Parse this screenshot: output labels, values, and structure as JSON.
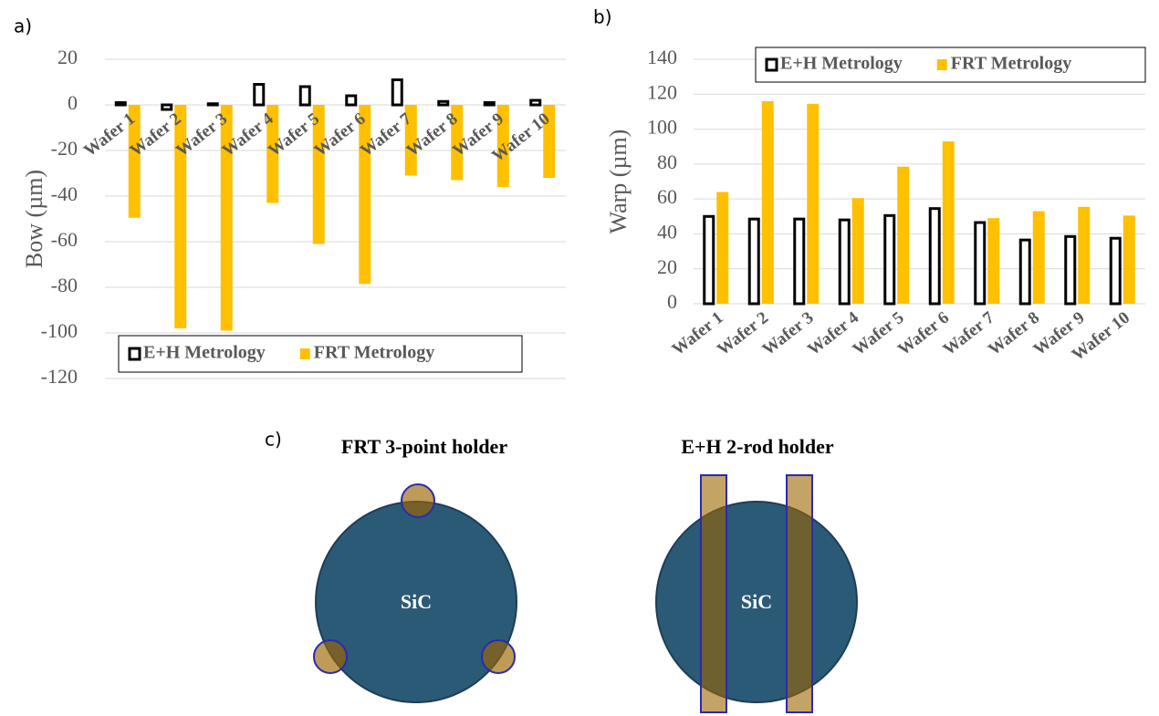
{
  "chart_data": [
    {
      "type": "bar",
      "panel_label": "a)",
      "y_label": "Bow (µm)",
      "categories": [
        "Wafer 1",
        "Wafer 2",
        "Wafer 3",
        "Wafer 4",
        "Wafer 5",
        "Wafer 6",
        "Wafer 7",
        "Wafer 8",
        "Wafer 9",
        "Wafer 10"
      ],
      "series": [
        {
          "name": "E+H Metrology",
          "color": "#000000",
          "style": "outline",
          "values": [
            1,
            -2,
            0.5,
            9,
            8,
            4,
            11,
            1.5,
            1,
            2
          ]
        },
        {
          "name": "FRT Metrology",
          "color": "#ffc000",
          "style": "solid",
          "values": [
            -49.5,
            -98,
            -99,
            -43,
            -61,
            -78.5,
            -31,
            -33,
            -36,
            -32
          ]
        }
      ],
      "ylim": [
        -120,
        20
      ],
      "yticks": [
        -120,
        -100,
        -80,
        -60,
        -40,
        -20,
        0,
        20
      ],
      "grid": true,
      "legend": "bottom"
    },
    {
      "type": "bar",
      "panel_label": "b)",
      "y_label": "Warp (µm)",
      "categories": [
        "Wafer 1",
        "Wafer 2",
        "Wafer 3",
        "Wafer 4",
        "Wafer 5",
        "Wafer 6",
        "Wafer 7",
        "Wafer 8",
        "Wafer 9",
        "Wafer 10"
      ],
      "series": [
        {
          "name": "E+H Metrology",
          "color": "#000000",
          "style": "outline",
          "values": [
            50,
            48.5,
            48.5,
            48,
            50.5,
            54.5,
            46.5,
            36.5,
            38.5,
            37.5
          ]
        },
        {
          "name": "FRT Metrology",
          "color": "#ffc000",
          "style": "solid",
          "values": [
            64,
            116,
            114.5,
            60.5,
            78.5,
            93,
            49,
            53,
            55.5,
            50.5
          ]
        }
      ],
      "ylim": [
        0,
        140
      ],
      "yticks": [
        0,
        20,
        40,
        60,
        80,
        100,
        120,
        140
      ],
      "grid": true,
      "legend": "top"
    }
  ],
  "diagram": {
    "panel_label": "c)",
    "holders": [
      {
        "title": "FRT 3-point holder",
        "wafer_label": "SiC"
      },
      {
        "title": "E+H 2-rod holder",
        "wafer_label": "SiC"
      }
    ]
  }
}
